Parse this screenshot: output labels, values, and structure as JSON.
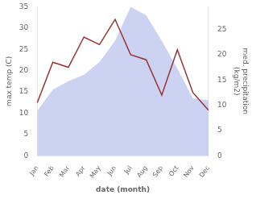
{
  "chart_data": {
    "type": "line",
    "xlabel": "date (month)",
    "ylabel": "max temp (C)",
    "y2label": "med. precipitation\n(kg/m2)",
    "categories": [
      "Jan",
      "Feb",
      "Mar",
      "Apr",
      "May",
      "Jun",
      "Jul",
      "Aug",
      "Sep",
      "Oct",
      "Nov",
      "Dec"
    ],
    "series": [
      {
        "type": "area",
        "color": "#aab4e8",
        "values": [
          10.5,
          15.5,
          17.5,
          19.0,
          22.0,
          27.0,
          35.0,
          33.0,
          27.0,
          20.5,
          13.5,
          13.0
        ]
      },
      {
        "type": "line",
        "color": "#993333",
        "axis": "y2",
        "values": [
          10.5,
          18.5,
          17.5,
          23.5,
          22.0,
          27.0,
          20.0,
          19.0,
          12.0,
          21.0,
          12.5,
          9.0
        ]
      }
    ],
    "ylim": [
      0,
      35
    ],
    "yticks": [
      0,
      5,
      10,
      15,
      20,
      25,
      30,
      35
    ],
    "y2lim": [
      0,
      29.5
    ],
    "y2ticks": [
      0,
      5,
      10,
      15,
      20,
      25
    ],
    "grid": false
  }
}
